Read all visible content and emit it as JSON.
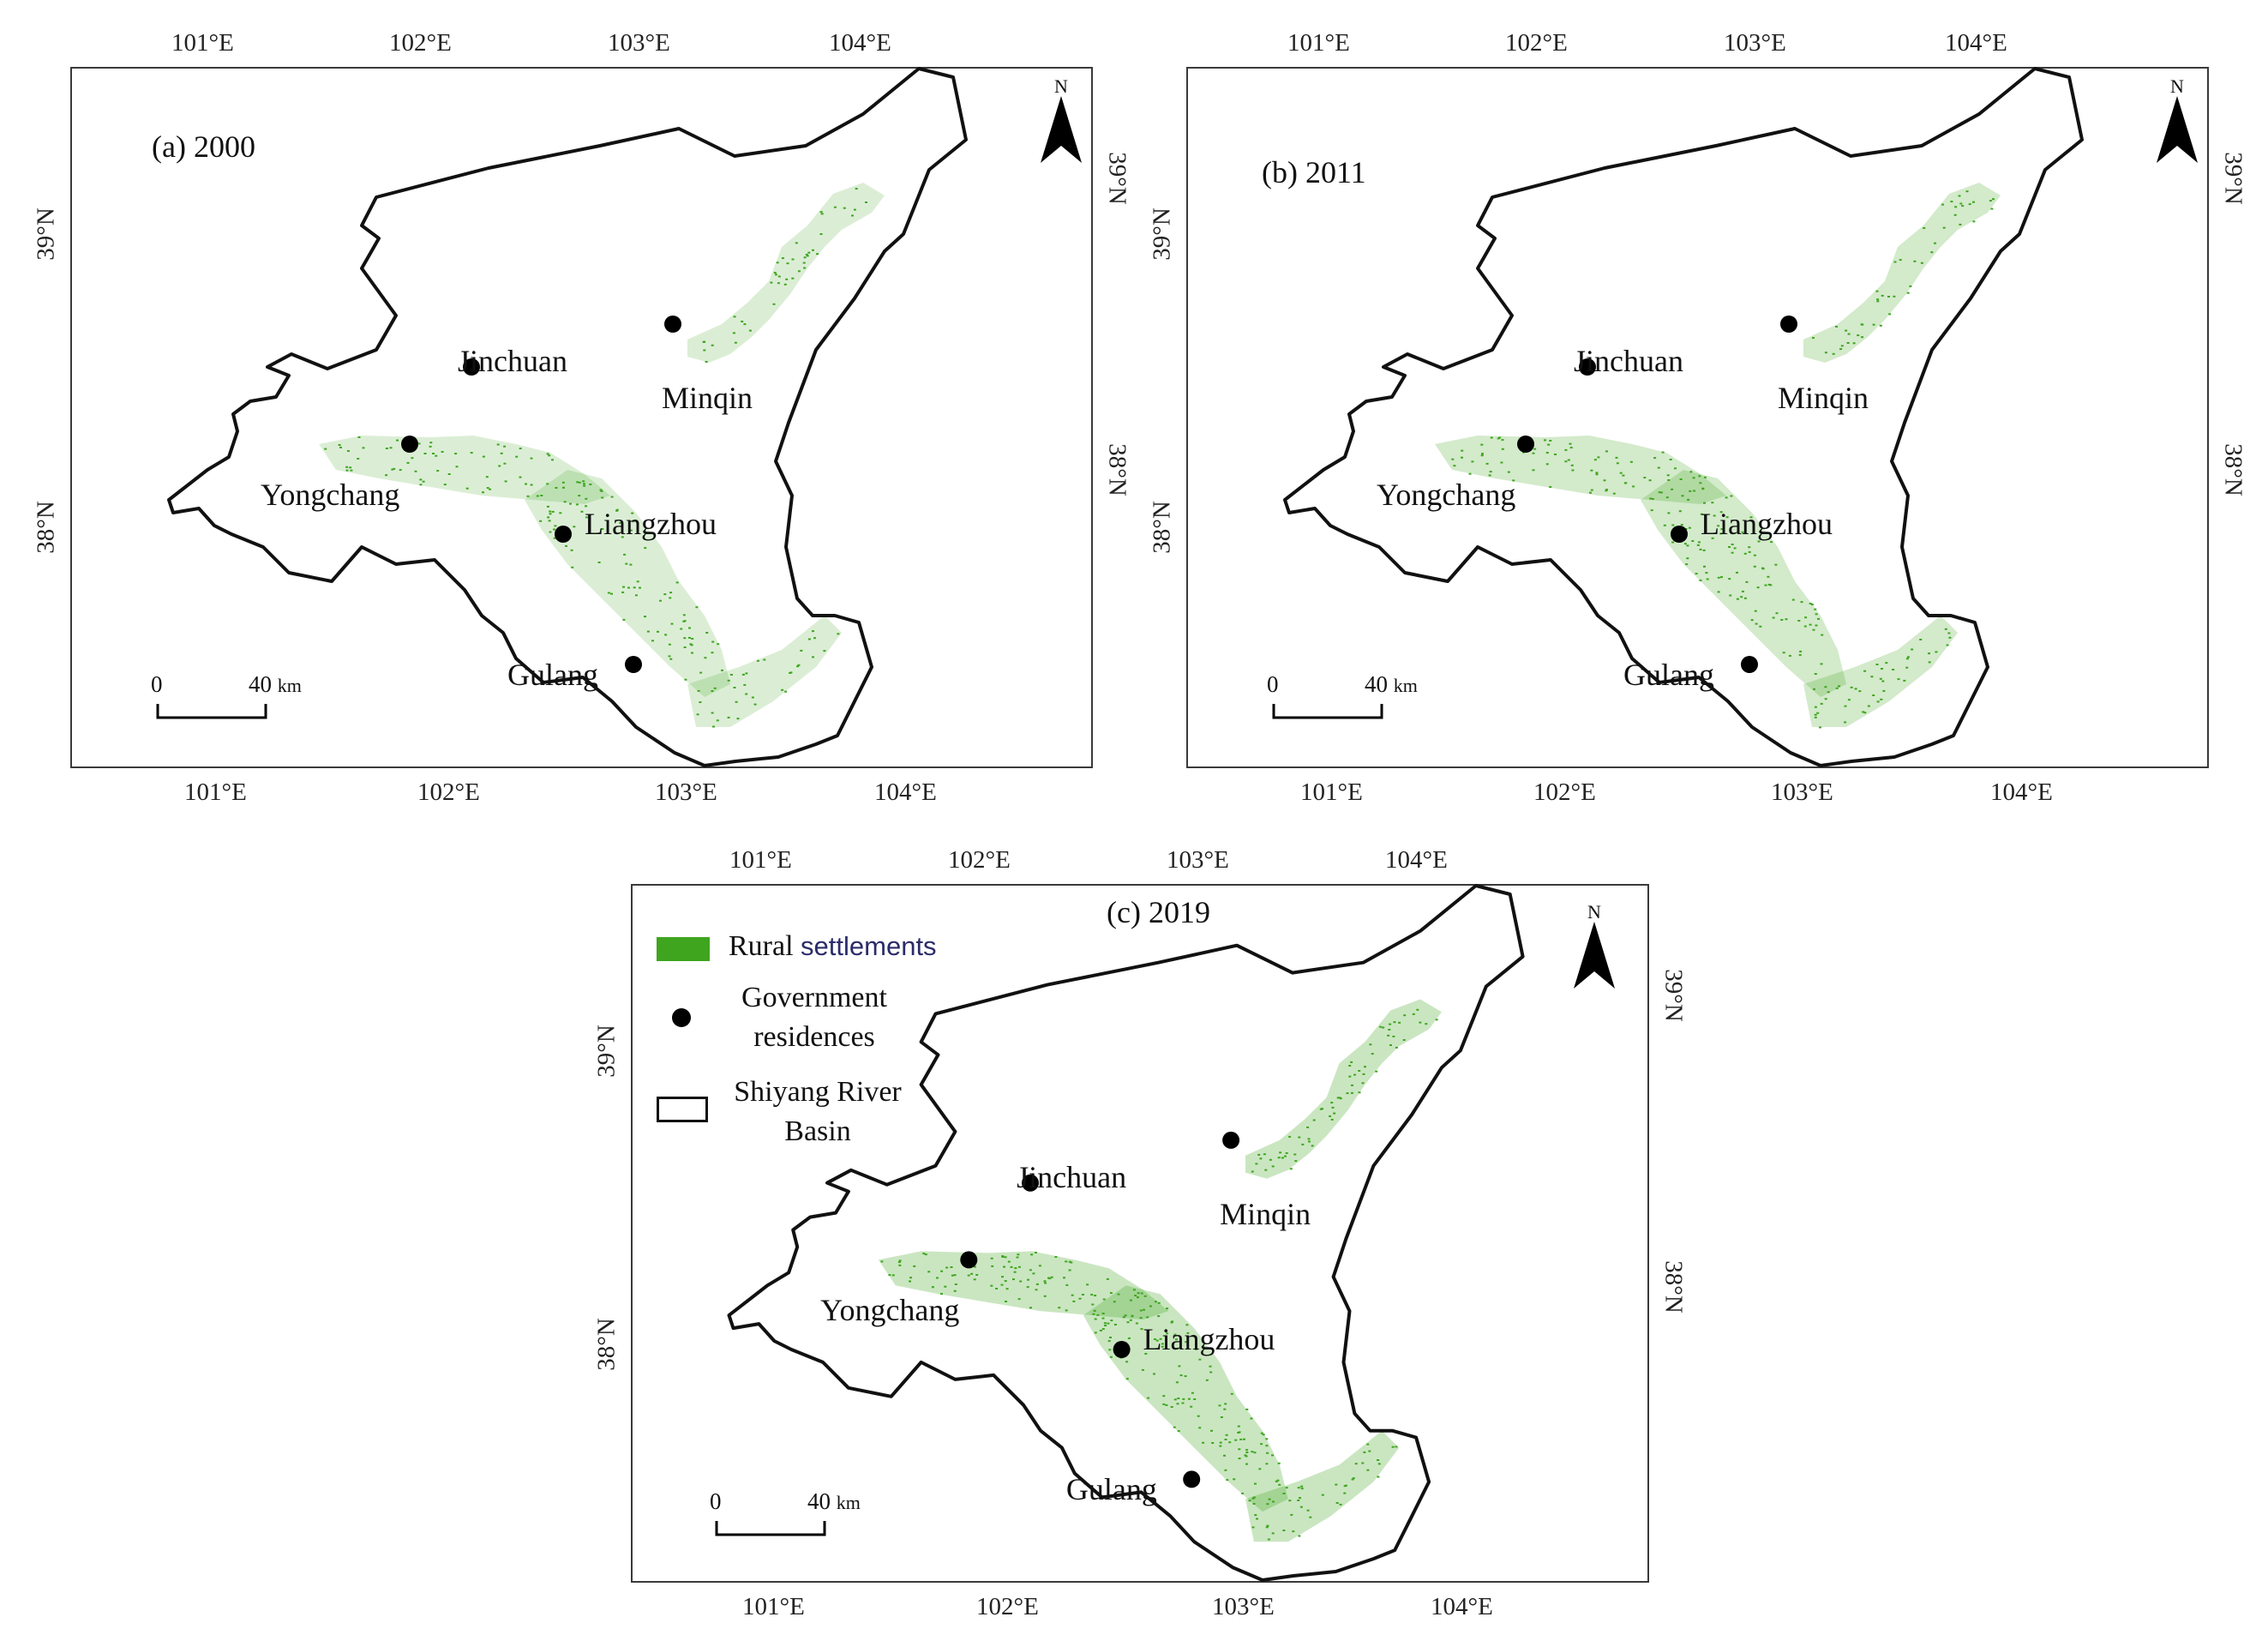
{
  "figure": {
    "lon_ticks": [
      "101°E",
      "102°E",
      "103°E",
      "104°E"
    ],
    "lat_ticks": [
      "38°N",
      "39°N"
    ],
    "colors": {
      "settlement": "#3fa51f",
      "boundary": "#111111",
      "frame": "#3a3a3a"
    },
    "cities": {
      "jinchuan": "Jinchuan",
      "minqin": "Minqin",
      "yongchang": "Yongchang",
      "liangzhou": "Liangzhou",
      "gulang": "Gulang"
    },
    "scale_bar": {
      "start": "0",
      "end": "40",
      "unit": "km"
    },
    "north_arrow": "N"
  },
  "panels": [
    {
      "id": "a",
      "title": "(a) 2000"
    },
    {
      "id": "b",
      "title": "(b) 2011"
    },
    {
      "id": "c",
      "title": "(c) 2019"
    }
  ],
  "legend": {
    "items": [
      {
        "icon": "green-square-icon",
        "label_a": "Rural",
        "label_b": "settlements"
      },
      {
        "icon": "black-dot-icon",
        "label_line1": "Government",
        "label_line2": "residences"
      },
      {
        "icon": "white-rectangle-icon",
        "label_line1": "Shiyang River",
        "label_line2": "Basin"
      }
    ]
  }
}
